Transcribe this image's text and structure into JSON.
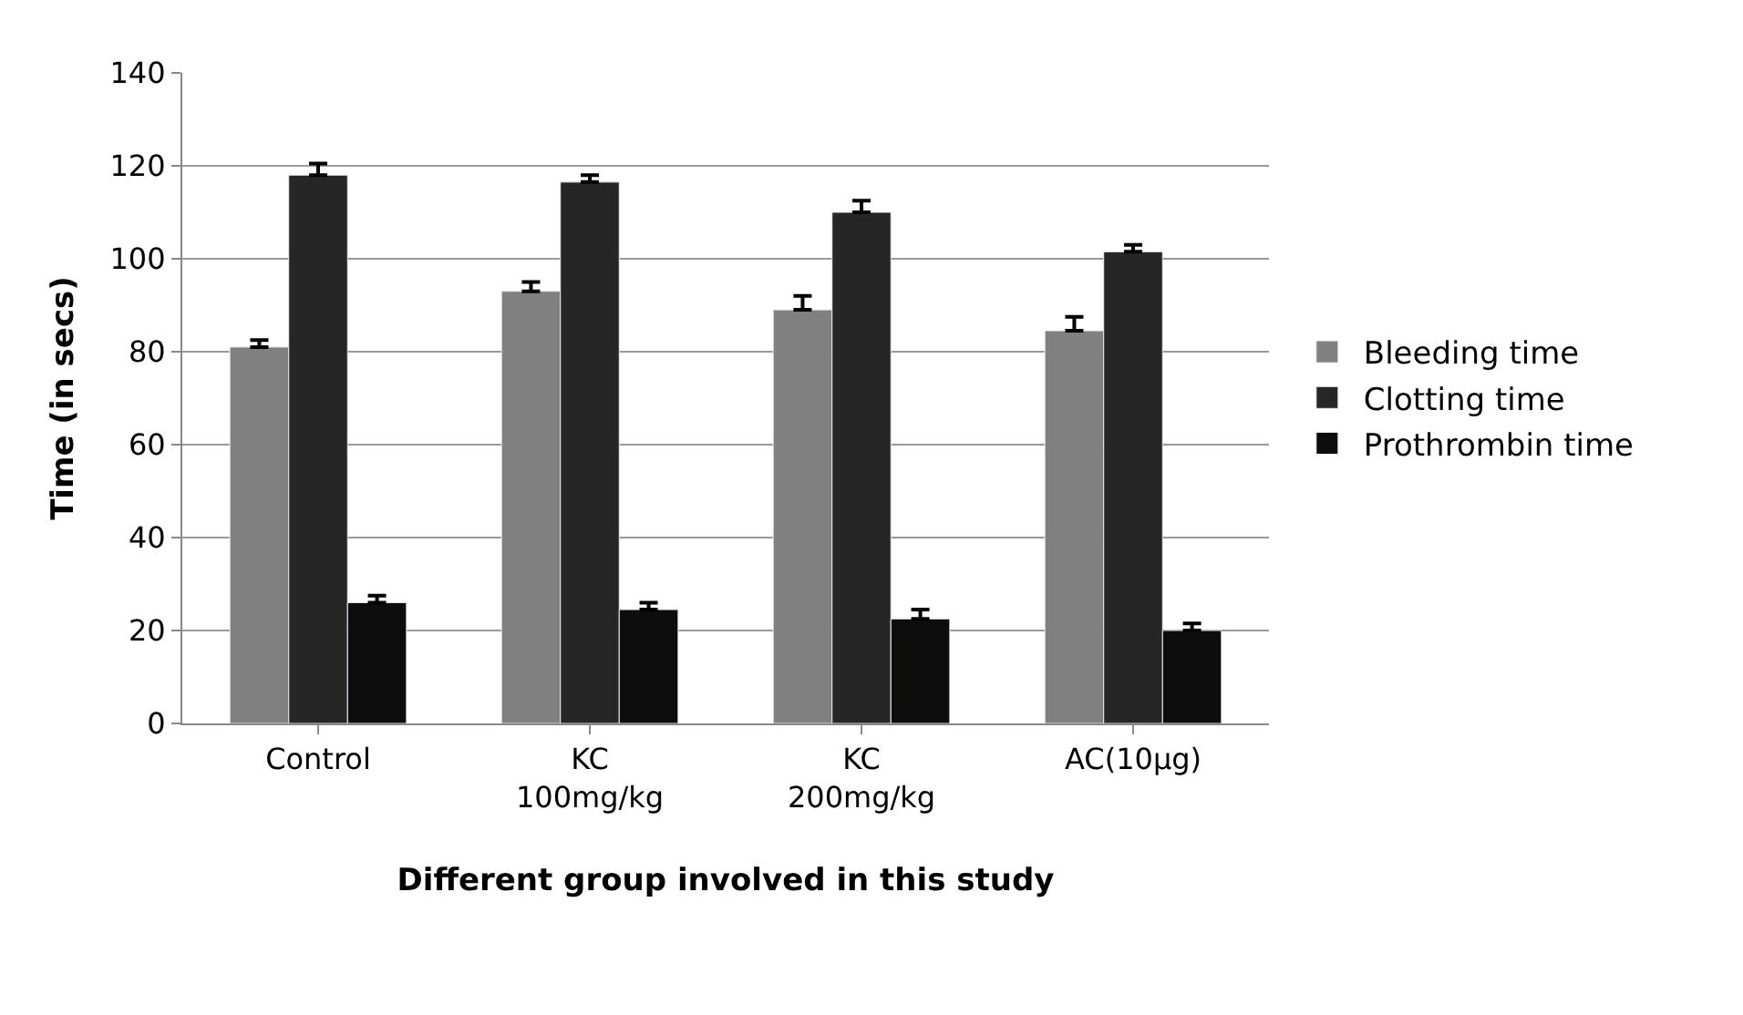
{
  "chart_data": {
    "type": "bar",
    "xlabel": "Different group involved in this study",
    "ylabel": "Time (in secs)",
    "categories": [
      "Control",
      "KC 100mg/kg",
      "KC 200mg/kg",
      "AC(10µg)"
    ],
    "series": [
      {
        "name": "Bleeding time",
        "color": "#808080",
        "values": [
          81,
          93,
          89,
          84.5
        ],
        "errors": [
          [
            81,
            82.5
          ],
          [
            93,
            95
          ],
          [
            89,
            92
          ],
          [
            84.5,
            87.5
          ]
        ]
      },
      {
        "name": "Clotting time",
        "color": "#262626",
        "values": [
          118,
          116.5,
          110,
          101.5
        ],
        "errors": [
          [
            118,
            120.5
          ],
          [
            116.5,
            118
          ],
          [
            110,
            112.5
          ],
          [
            101.5,
            103
          ]
        ]
      },
      {
        "name": "Prothrombin time",
        "color": "#0d0d0d",
        "values": [
          26,
          24.5,
          22.5,
          20
        ],
        "errors": [
          [
            26,
            27.5
          ],
          [
            24.5,
            26
          ],
          [
            22.5,
            24.5
          ],
          [
            20,
            21.5
          ]
        ]
      }
    ],
    "ylim": [
      0,
      140
    ],
    "yticks": [
      0,
      20,
      40,
      60,
      80,
      100,
      120,
      140
    ],
    "grid": "y",
    "legend": "right"
  }
}
